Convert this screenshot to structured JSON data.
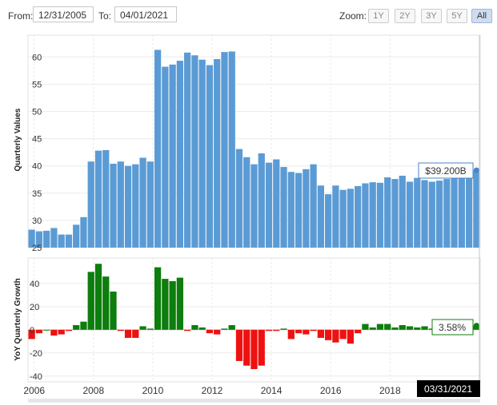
{
  "controls": {
    "from_label": "From:",
    "from_value": "12/31/2005",
    "to_label": "To:",
    "to_value": "04/01/2021",
    "zoom_label": "Zoom:",
    "zoom_buttons": [
      "1Y",
      "2Y",
      "3Y",
      "5Y",
      "All"
    ],
    "zoom_active": "All"
  },
  "chart_data": [
    {
      "type": "bar",
      "ylabel": "Quarterly Values",
      "ylim": [
        25,
        64
      ],
      "yticks": [
        25,
        30,
        35,
        40,
        45,
        50,
        55,
        60
      ],
      "color": "#5b9bd5",
      "values": [
        28.3,
        28.0,
        28.1,
        28.6,
        27.4,
        27.4,
        29.2,
        30.6,
        40.8,
        42.8,
        42.9,
        40.4,
        40.8,
        40.0,
        40.3,
        41.5,
        40.8,
        61.3,
        58.2,
        58.6,
        59.3,
        60.8,
        60.3,
        59.5,
        58.5,
        59.6,
        60.9,
        61.0,
        43.1,
        41.6,
        40.3,
        42.3,
        40.6,
        41.2,
        39.8,
        38.9,
        38.7,
        39.4,
        40.3,
        36.4,
        34.8,
        36.4,
        35.6,
        35.8,
        36.3,
        36.8,
        37.0,
        36.9,
        37.9,
        37.6,
        38.2,
        37.1,
        37.8,
        37.4,
        37.1,
        37.3,
        37.6,
        37.9,
        38.0,
        38.3,
        39.2
      ],
      "last_value_label": "$39.200B"
    },
    {
      "type": "bar",
      "ylabel": "YoY Quarterly Growth",
      "ylim": [
        -45,
        62
      ],
      "yticks": [
        -40,
        -20,
        0,
        20,
        40
      ],
      "positive_color": "#0d7d0d",
      "negative_color": "#ee1111",
      "values": [
        -8,
        -3,
        0,
        -5,
        -4,
        -1,
        4,
        7,
        50,
        57,
        46,
        33,
        -1,
        -7,
        -7,
        3,
        1,
        54,
        44,
        42,
        45,
        -1,
        4,
        2,
        -3,
        -4,
        1,
        4,
        -27,
        -31,
        -34,
        -31,
        -1,
        -1,
        1,
        -8,
        -3,
        -4,
        -1,
        -7,
        -9,
        -11,
        -8,
        -12,
        -3,
        5,
        2,
        5,
        5,
        2,
        4,
        3,
        2,
        3,
        1,
        -1,
        -3,
        -1,
        0,
        1,
        3.58
      ],
      "last_value_label": "3.58%"
    }
  ],
  "x_axis": {
    "tick_labels": [
      "2006",
      "2008",
      "2010",
      "2012",
      "2014",
      "2016",
      "2018"
    ],
    "current_date_label": "03/31/2021"
  }
}
